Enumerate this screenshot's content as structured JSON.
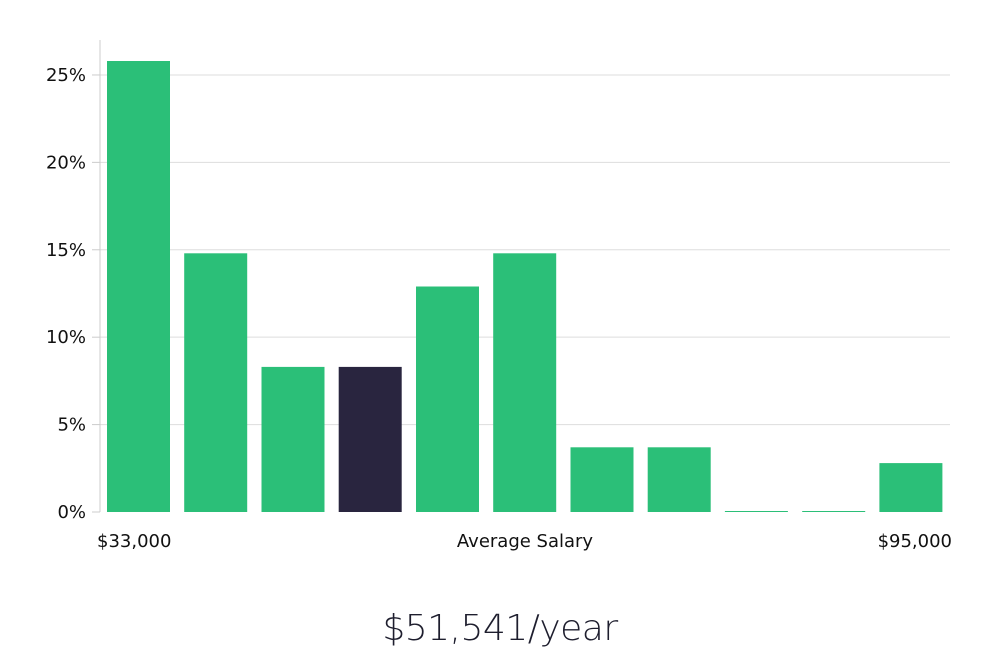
{
  "chart_data": {
    "type": "bar",
    "values": [
      25.8,
      14.8,
      8.3,
      8.3,
      12.9,
      14.8,
      3.7,
      3.7,
      0.05,
      0.05,
      2.8
    ],
    "highlight_index": 3,
    "ylim": [
      0,
      27
    ],
    "yticks": [
      0,
      5,
      10,
      15,
      20,
      25
    ],
    "ytick_labels": [
      "0%",
      "5%",
      "10%",
      "15%",
      "20%",
      "25%"
    ],
    "x_min_label": "$33,000",
    "x_center_label": "Average Salary",
    "x_max_label": "$95,000",
    "grid": true,
    "colors": {
      "bar": "#2bbf78",
      "highlight": "#29253f",
      "grid": "#dddddd",
      "axis": "#cccccc"
    }
  },
  "salary_label": "$51,541/year"
}
